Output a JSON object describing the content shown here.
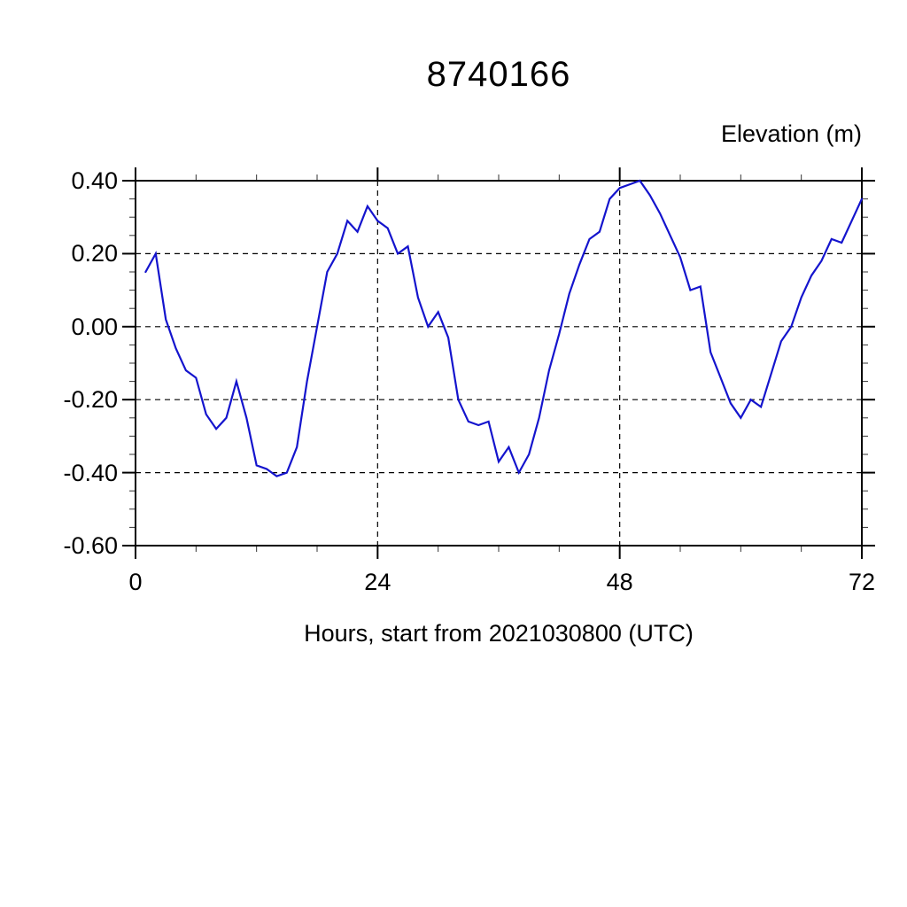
{
  "page": {
    "background": "#ffffff"
  },
  "chart_data": {
    "type": "line",
    "title": "8740166",
    "ylabel": "Elevation (m)",
    "xlabel": "Hours, start from 2021030800 (UTC)",
    "legend": "none",
    "grid": "dashed-at-major-ticks",
    "frame": "full-box",
    "line_color": "#1414cd",
    "axis_color": "#000000",
    "xlim": [
      0,
      72
    ],
    "ylim": [
      -0.6,
      0.4
    ],
    "x_major_ticks": [
      0,
      24,
      48,
      72
    ],
    "x_major_tick_labels": [
      "0",
      "24",
      "48",
      "72"
    ],
    "x_minor_step": 6,
    "y_major_ticks": [
      0.4,
      0.2,
      0.0,
      -0.2,
      -0.4,
      -0.6
    ],
    "y_major_tick_labels": [
      "0.40",
      "0.20",
      "0.00",
      "-0.20",
      "-0.40",
      "-0.60"
    ],
    "y_minor_step": 0.05,
    "series": [
      {
        "name": "elevation",
        "color": "#1414cd",
        "x": [
          1,
          2,
          3,
          4,
          5,
          6,
          7,
          8,
          9,
          10,
          11,
          12,
          13,
          14,
          15,
          16,
          17,
          18,
          19,
          20,
          21,
          22,
          23,
          24,
          25,
          26,
          27,
          28,
          29,
          30,
          31,
          32,
          33,
          34,
          35,
          36,
          37,
          38,
          39,
          40,
          41,
          42,
          43,
          44,
          45,
          46,
          47,
          48,
          49,
          50,
          51,
          52,
          53,
          54,
          55,
          56,
          57,
          58,
          59,
          60,
          61,
          62,
          63,
          64,
          65,
          66,
          67,
          68,
          69,
          70,
          71,
          72
        ],
        "y": [
          0.15,
          0.2,
          0.02,
          -0.06,
          -0.12,
          -0.14,
          -0.24,
          -0.28,
          -0.25,
          -0.15,
          -0.25,
          -0.38,
          -0.39,
          -0.41,
          -0.4,
          -0.33,
          -0.15,
          0.0,
          0.15,
          0.2,
          0.29,
          0.26,
          0.33,
          0.29,
          0.27,
          0.2,
          0.22,
          0.08,
          0.0,
          0.04,
          -0.03,
          -0.2,
          -0.26,
          -0.27,
          -0.26,
          -0.37,
          -0.33,
          -0.4,
          -0.35,
          -0.25,
          -0.12,
          -0.02,
          0.09,
          0.17,
          0.24,
          0.26,
          0.35,
          0.38,
          0.39,
          0.4,
          0.36,
          0.31,
          0.25,
          0.19,
          0.1,
          0.11,
          -0.07,
          -0.14,
          -0.21,
          -0.25,
          -0.2,
          -0.22,
          -0.13,
          -0.04,
          0.0,
          0.08,
          0.14,
          0.18,
          0.24,
          0.23,
          0.29,
          0.35
        ]
      }
    ]
  }
}
